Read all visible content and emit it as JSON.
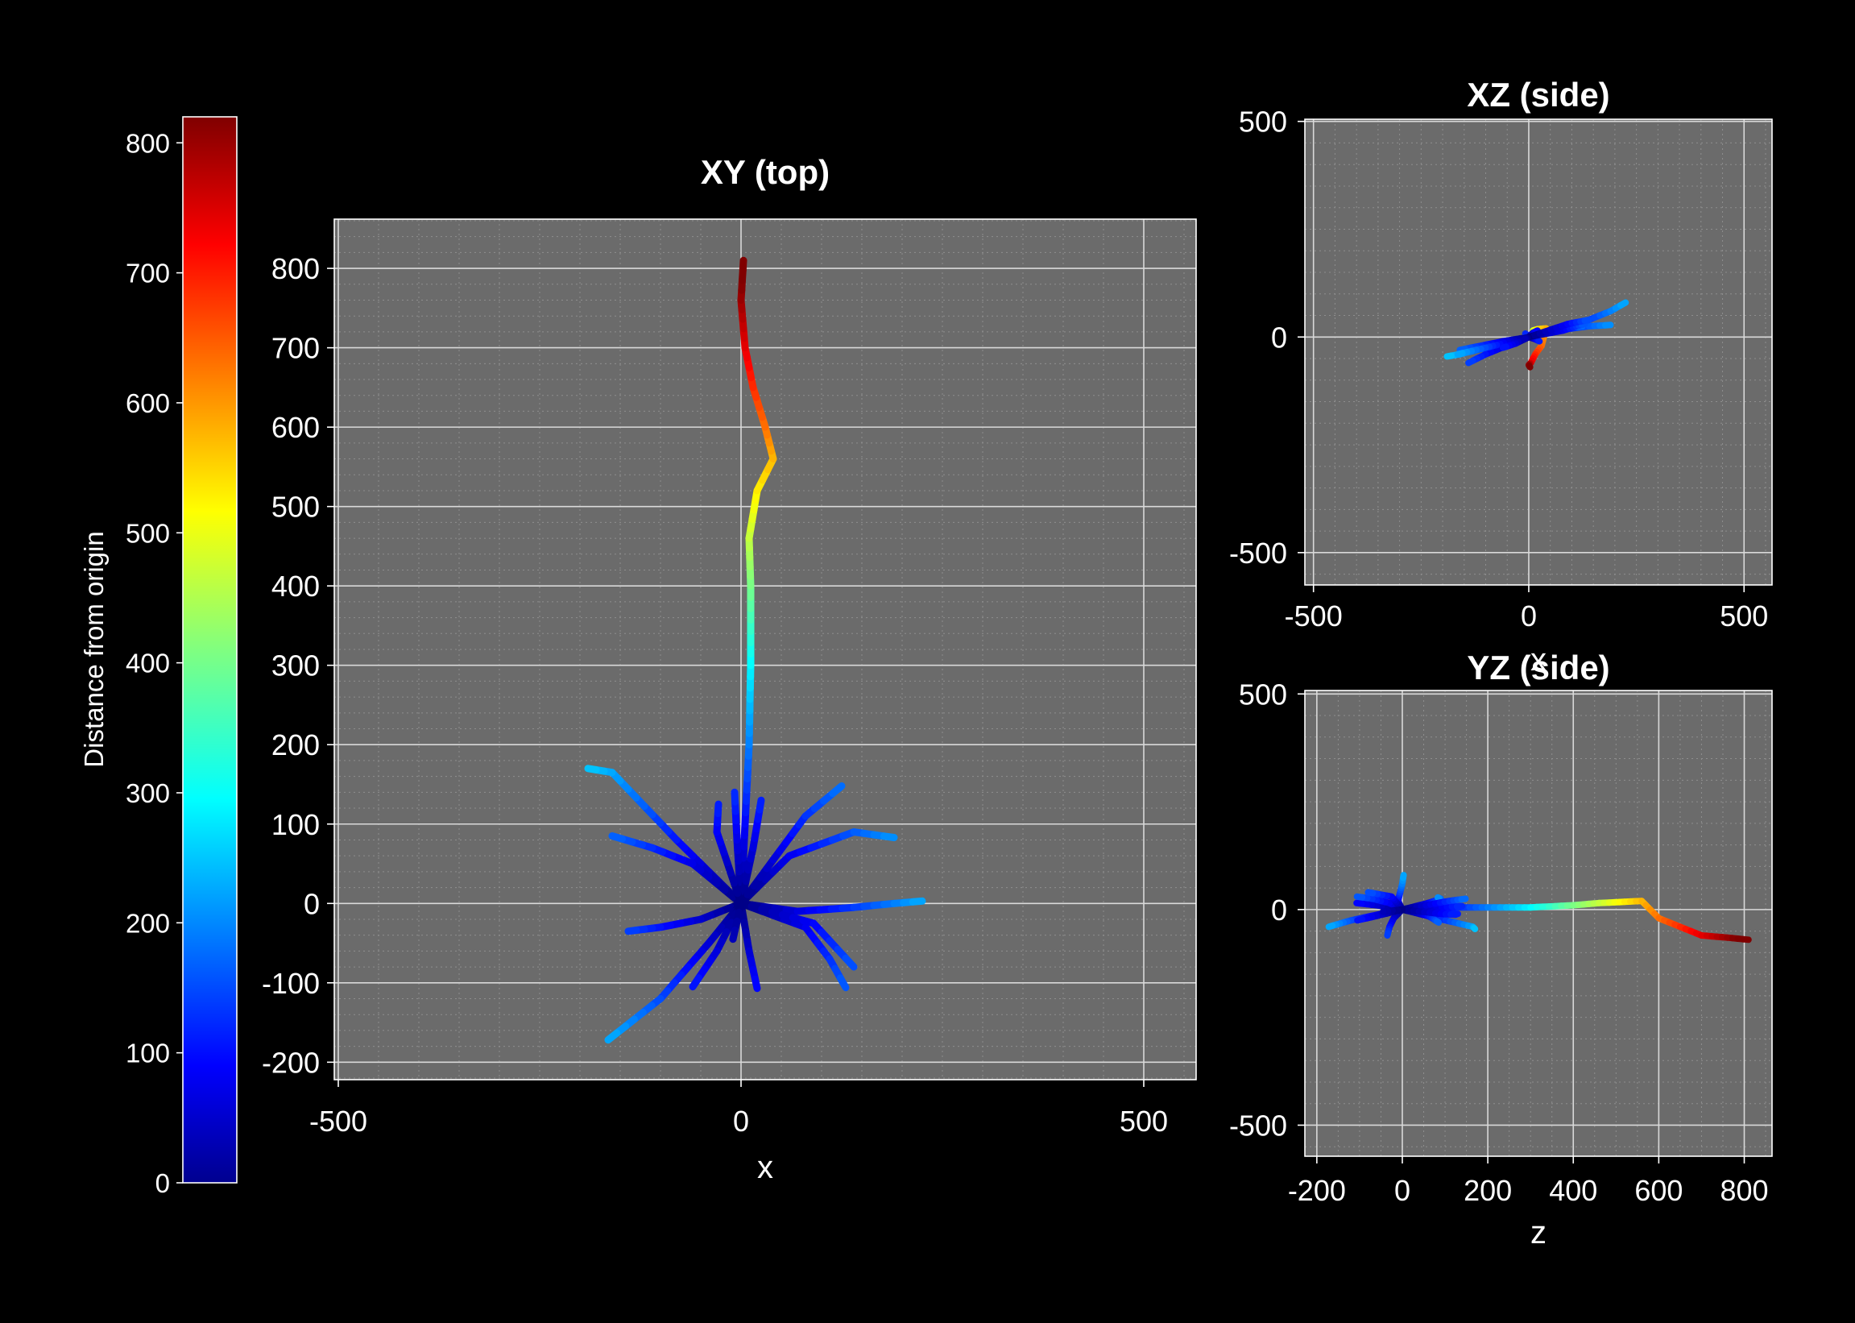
{
  "chart_data": [
    {
      "type": "line",
      "panel": "xy",
      "title": "XY (top)",
      "xlabel": "x",
      "ylabel": "",
      "xlim": [
        -505,
        565
      ],
      "ylim": [
        -222,
        862
      ],
      "xticks": [
        -500,
        0,
        500
      ],
      "xtick_labels": [
        "-500",
        "0",
        "500"
      ],
      "yticks": [
        -200,
        -100,
        0,
        100,
        200,
        300,
        400,
        500,
        600,
        700,
        800
      ],
      "ytick_labels": [
        "-200",
        "-100",
        "0",
        "100",
        "200",
        "300",
        "400",
        "500",
        "600",
        "700",
        "800"
      ],
      "grid": true
    },
    {
      "type": "line",
      "panel": "xz",
      "title": "XZ (side)",
      "xlabel": "x",
      "ylabel": "",
      "xlim": [
        -520,
        565
      ],
      "ylim": [
        -575,
        505
      ],
      "xticks": [
        -500,
        0,
        500
      ],
      "xtick_labels": [
        "-500",
        "0",
        "500"
      ],
      "yticks": [
        -500,
        0,
        500
      ],
      "ytick_labels": [
        "-500",
        "0",
        "500"
      ],
      "grid": true
    },
    {
      "type": "line",
      "panel": "yz",
      "title": "YZ (side)",
      "xlabel": "z",
      "ylabel": "",
      "xlim": [
        -228,
        865
      ],
      "ylim": [
        -572,
        508
      ],
      "xticks": [
        -200,
        0,
        200,
        400,
        600,
        800
      ],
      "xtick_labels": [
        "-200",
        "0",
        "200",
        "400",
        "600",
        "800"
      ],
      "yticks": [
        -500,
        0,
        500
      ],
      "ytick_labels": [
        "-500",
        "0",
        "500"
      ],
      "grid": true
    },
    {
      "type": "heatmap",
      "panel": "colorbar",
      "label": "Distance from origin",
      "colormap": "jet",
      "range": [
        0,
        820
      ],
      "ticks": [
        0,
        100,
        200,
        300,
        400,
        500,
        600,
        700,
        800
      ],
      "tick_labels": [
        "0",
        "100",
        "200",
        "300",
        "400",
        "500",
        "600",
        "700",
        "800"
      ]
    }
  ],
  "colors": {
    "background": "#000000",
    "panel": "#6b6b6b",
    "text": "#ffffff"
  },
  "branches": [
    [
      [
        0,
        0,
        0
      ],
      [
        5,
        100,
        5
      ],
      [
        10,
        200,
        5
      ],
      [
        12,
        300,
        5
      ],
      [
        12,
        400,
        10
      ],
      [
        10,
        460,
        15
      ],
      [
        20,
        520,
        18
      ],
      [
        40,
        560,
        20
      ],
      [
        30,
        600,
        -20
      ],
      [
        15,
        650,
        -40
      ],
      [
        5,
        700,
        -60
      ],
      [
        0,
        760,
        -65
      ],
      [
        3,
        810,
        -70
      ]
    ],
    [
      [
        0,
        0,
        0
      ],
      [
        -80,
        80,
        -20
      ],
      [
        -160,
        165,
        -40
      ],
      [
        -190,
        170,
        -45
      ]
    ],
    [
      [
        0,
        0,
        0
      ],
      [
        60,
        60,
        15
      ],
      [
        140,
        90,
        25
      ],
      [
        190,
        83,
        28
      ]
    ],
    [
      [
        0,
        0,
        0
      ],
      [
        -60,
        50,
        -10
      ],
      [
        -110,
        70,
        -20
      ],
      [
        -160,
        85,
        -30
      ]
    ],
    [
      [
        0,
        0,
        0
      ],
      [
        -5,
        80,
        5
      ],
      [
        -8,
        140,
        8
      ]
    ],
    [
      [
        0,
        0,
        0
      ],
      [
        15,
        70,
        -5
      ],
      [
        25,
        130,
        -10
      ]
    ],
    [
      [
        0,
        0,
        0
      ],
      [
        40,
        55,
        10
      ],
      [
        80,
        110,
        20
      ],
      [
        125,
        148,
        25
      ]
    ],
    [
      [
        0,
        0,
        0
      ],
      [
        -30,
        90,
        -10
      ],
      [
        -28,
        125,
        -12
      ]
    ],
    [
      [
        0,
        0,
        0
      ],
      [
        70,
        -10,
        20
      ],
      [
        140,
        -5,
        40
      ],
      [
        190,
        0,
        60
      ],
      [
        225,
        3,
        80
      ]
    ],
    [
      [
        0,
        0,
        0
      ],
      [
        -50,
        -20,
        -20
      ],
      [
        -100,
        -30,
        -40
      ],
      [
        -140,
        -35,
        -60
      ]
    ],
    [
      [
        0,
        0,
        0
      ],
      [
        -40,
        -50,
        -10
      ],
      [
        -100,
        -120,
        -25
      ],
      [
        -165,
        -172,
        -40
      ]
    ],
    [
      [
        0,
        0,
        0
      ],
      [
        -30,
        -60,
        -15
      ],
      [
        -60,
        -105,
        -25
      ]
    ],
    [
      [
        0,
        0,
        0
      ],
      [
        10,
        -60,
        10
      ],
      [
        20,
        -107,
        15
      ]
    ],
    [
      [
        0,
        0,
        0
      ],
      [
        80,
        -30,
        15
      ],
      [
        110,
        -70,
        25
      ],
      [
        130,
        -106,
        30
      ]
    ],
    [
      [
        0,
        0,
        0
      ],
      [
        90,
        -25,
        30
      ],
      [
        140,
        -80,
        40
      ]
    ],
    [
      [
        0,
        0,
        0
      ],
      [
        -10,
        -45,
        -5
      ],
      [
        -10,
        -45,
        -5
      ]
    ]
  ]
}
